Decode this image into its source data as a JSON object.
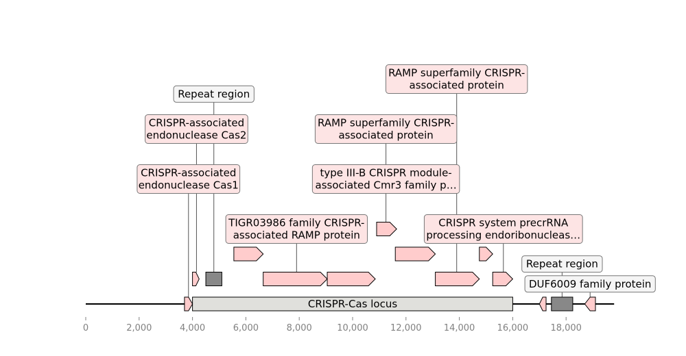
{
  "chart_data": {
    "type": "diagram",
    "x_axis": {
      "min": 0,
      "max": 19500,
      "ticks": [
        0,
        2000,
        4000,
        6000,
        8000,
        10000,
        12000,
        14000,
        16000,
        18000
      ],
      "tick_labels": [
        "0",
        "2,000",
        "4,000",
        "6,000",
        "8,000",
        "10,000",
        "12,000",
        "14,000",
        "16,000",
        "18,000"
      ]
    },
    "backbone": {
      "start": 0,
      "end": 19800
    },
    "locus": {
      "start": 4000,
      "end": 16000,
      "label": "CRISPR-Cas locus"
    },
    "features": [
      {
        "id": "f1",
        "type": "cds",
        "start": 3700,
        "end": 4000,
        "strand": 1,
        "row": 0
      },
      {
        "id": "f2",
        "type": "cds",
        "start": 4000,
        "end": 4250,
        "strand": 1,
        "row": 1
      },
      {
        "id": "f3",
        "type": "repeat",
        "start": 4500,
        "end": 5100,
        "strand": 0,
        "row": 1
      },
      {
        "id": "f4",
        "type": "cds",
        "start": 5550,
        "end": 6650,
        "strand": 1,
        "row": 2
      },
      {
        "id": "f5",
        "type": "cds",
        "start": 6650,
        "end": 9050,
        "strand": 1,
        "row": 1
      },
      {
        "id": "f6",
        "type": "cds",
        "start": 9050,
        "end": 10850,
        "strand": 1,
        "row": 1
      },
      {
        "id": "f7",
        "type": "cds",
        "start": 10900,
        "end": 11650,
        "strand": 1,
        "row": 3
      },
      {
        "id": "f8",
        "type": "cds",
        "start": 11600,
        "end": 13100,
        "strand": 1,
        "row": 2
      },
      {
        "id": "f9",
        "type": "cds",
        "start": 13100,
        "end": 14750,
        "strand": 1,
        "row": 1
      },
      {
        "id": "f10",
        "type": "cds",
        "start": 14750,
        "end": 15250,
        "strand": 1,
        "row": 2
      },
      {
        "id": "f11",
        "type": "cds",
        "start": 15250,
        "end": 16000,
        "strand": 1,
        "row": 1
      },
      {
        "id": "f12",
        "type": "cds",
        "start": 17000,
        "end": 17250,
        "strand": -1,
        "row": 0
      },
      {
        "id": "f13",
        "type": "repeat",
        "start": 17450,
        "end": 18250,
        "strand": 0,
        "row": 0
      },
      {
        "id": "f14",
        "type": "cds",
        "start": 18700,
        "end": 19100,
        "strand": -1,
        "row": 0
      }
    ],
    "annotations": [
      {
        "text": "CRISPR-associated\nendonuclease Cas1",
        "x": 3850,
        "row": 5,
        "anchor_row": 0,
        "kind": "pink"
      },
      {
        "text": "CRISPR-associated\nendonuclease Cas2",
        "x": 4150,
        "row": 7,
        "anchor_row": 1,
        "kind": "pink"
      },
      {
        "text": "Repeat region",
        "x": 4800,
        "row": 8.4,
        "anchor_row": 1,
        "kind": "grey"
      },
      {
        "text": "TIGR03986 family CRISPR-\nassociated RAMP protein",
        "x": 7900,
        "row": 3,
        "anchor_row": 1,
        "kind": "pink"
      },
      {
        "text": "type III-B CRISPR module-\nassociated Cmr3 family p…",
        "x": 11250,
        "row": 5,
        "anchor_row": 3,
        "kind": "pink"
      },
      {
        "text": "RAMP superfamily CRISPR-\nassociated protein",
        "x": 11250,
        "row": 7,
        "anchor_row": 5,
        "kind": "pink"
      },
      {
        "text": "CRISPR system precrRNA\nprocessing endoribonucleas…",
        "x": 15650,
        "row": 3,
        "anchor_row": 1,
        "kind": "pink"
      },
      {
        "text": "RAMP superfamily CRISPR-\nassociated protein",
        "x": 13900,
        "row": 9,
        "anchor_row": 1,
        "kind": "pink",
        "line_x": 13900
      },
      {
        "text": "Repeat region",
        "x": 17850,
        "row": 1.6,
        "anchor_row": 0,
        "kind": "grey"
      },
      {
        "text": "DUF6009 family protein",
        "x": 18900,
        "row": 0.8,
        "anchor_row": 0,
        "kind": "grey"
      }
    ],
    "colors": {
      "cds": "#ffcccc",
      "repeat": "#888888",
      "locus": "#e0e0dc",
      "pink_box": "#fde4e4",
      "grey_box": "#f5f5f5"
    }
  }
}
